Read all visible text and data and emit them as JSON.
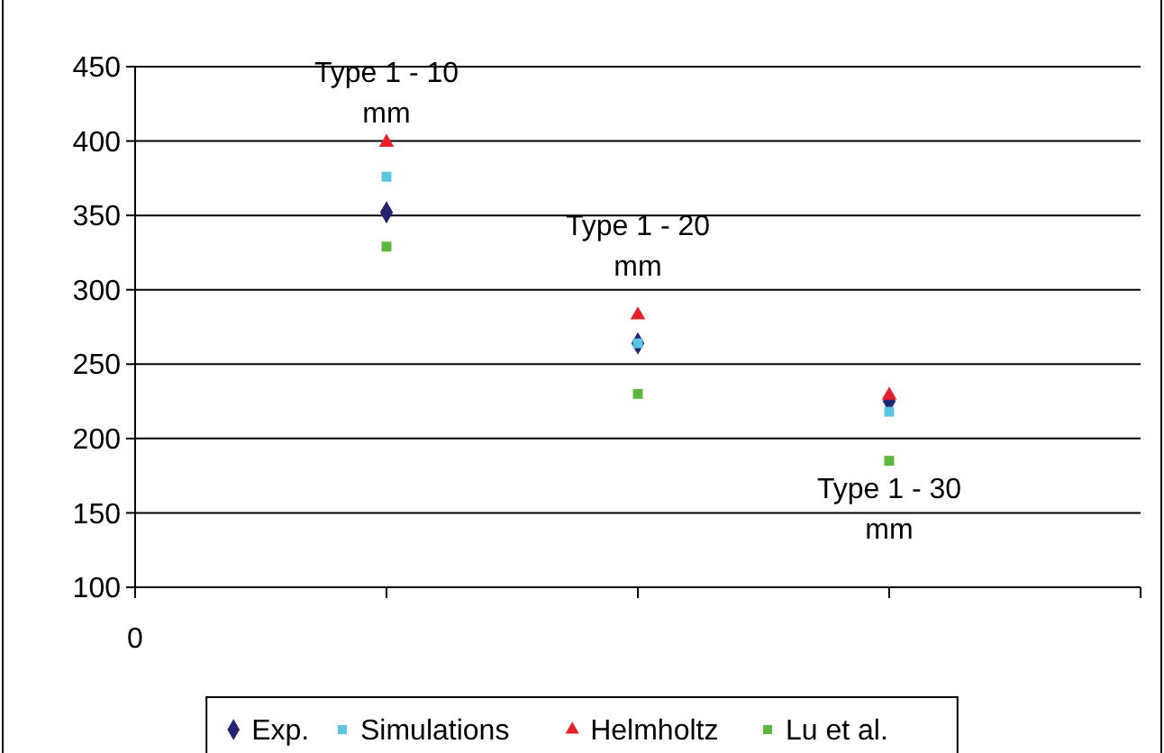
{
  "chart_data": {
    "type": "scatter",
    "categories": [
      null,
      null,
      null
    ],
    "ylim": [
      100,
      450
    ],
    "yticks": [
      100,
      150,
      200,
      250,
      300,
      350,
      400,
      450
    ],
    "grid": "y",
    "legend": "bottom",
    "series": [
      {
        "name": "Exp.",
        "color": "#232372",
        "marker": "diamond",
        "values": [
          352,
          264,
          225
        ]
      },
      {
        "name": "Simulations",
        "color": "#5bc6df",
        "marker": "square",
        "values": [
          376,
          264,
          218
        ]
      },
      {
        "name": "Helmholtz",
        "color": "#e8202a",
        "marker": "triangle",
        "values": [
          399,
          283,
          229
        ]
      },
      {
        "name": "Lu et al.",
        "color": "#5cb83c",
        "marker": "square",
        "values": [
          329,
          230,
          185
        ]
      }
    ],
    "annotations": [
      "0",
      "Type 1 - 10 mm",
      "Type 1 - 20 mm",
      "Type 1 - 30 mm"
    ]
  }
}
